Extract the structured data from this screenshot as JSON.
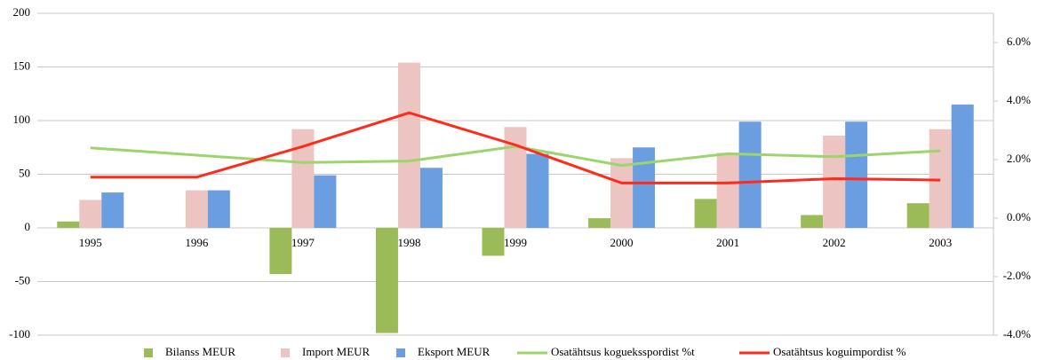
{
  "chart_data": {
    "type": "bar",
    "categories": [
      "1995",
      "1996",
      "1997",
      "1998",
      "1999",
      "2000",
      "2001",
      "2002",
      "2003"
    ],
    "series": [
      {
        "name": "Bilanss MEUR",
        "color": "#9bbb59",
        "values": [
          6,
          0,
          -43,
          -98,
          -26,
          9,
          27,
          12,
          23
        ]
      },
      {
        "name": "Import MEUR",
        "color": "#ecc4c1",
        "values": [
          26,
          35,
          92,
          154,
          94,
          65,
          70,
          86,
          92
        ]
      },
      {
        "name": "Eksport MEUR",
        "color": "#6a9ee0",
        "values": [
          33,
          35,
          49,
          56,
          69,
          75,
          99,
          99,
          115
        ]
      },
      {
        "name": "Osatähtsus kogueksspordist %t",
        "color": "#9bd56b",
        "type": "line",
        "axis": "y2",
        "values": [
          2.4,
          2.15,
          1.9,
          1.95,
          2.45,
          1.8,
          2.2,
          2.1,
          2.3
        ]
      },
      {
        "name": "Osatähtsus koguimpordist %",
        "color": "#ff2a1a",
        "type": "line",
        "axis": "y2",
        "values": [
          1.4,
          1.4,
          2.45,
          3.6,
          2.5,
          1.2,
          1.2,
          1.35,
          1.3
        ]
      }
    ],
    "ylim": [
      -100,
      200
    ],
    "yticks": [
      -100,
      -50,
      0,
      50,
      100,
      150,
      200
    ],
    "y2lim": [
      -4,
      7
    ],
    "y2ticks": [
      {
        "value": -4,
        "label": "-4.0%"
      },
      {
        "value": -2,
        "label": "-2.0%"
      },
      {
        "value": 0,
        "label": "0.0%"
      },
      {
        "value": 2,
        "label": "2.0%"
      },
      {
        "value": 4,
        "label": "4.0%"
      },
      {
        "value": 6,
        "label": "6.0%"
      }
    ],
    "grid": true,
    "legend": "bottom"
  }
}
